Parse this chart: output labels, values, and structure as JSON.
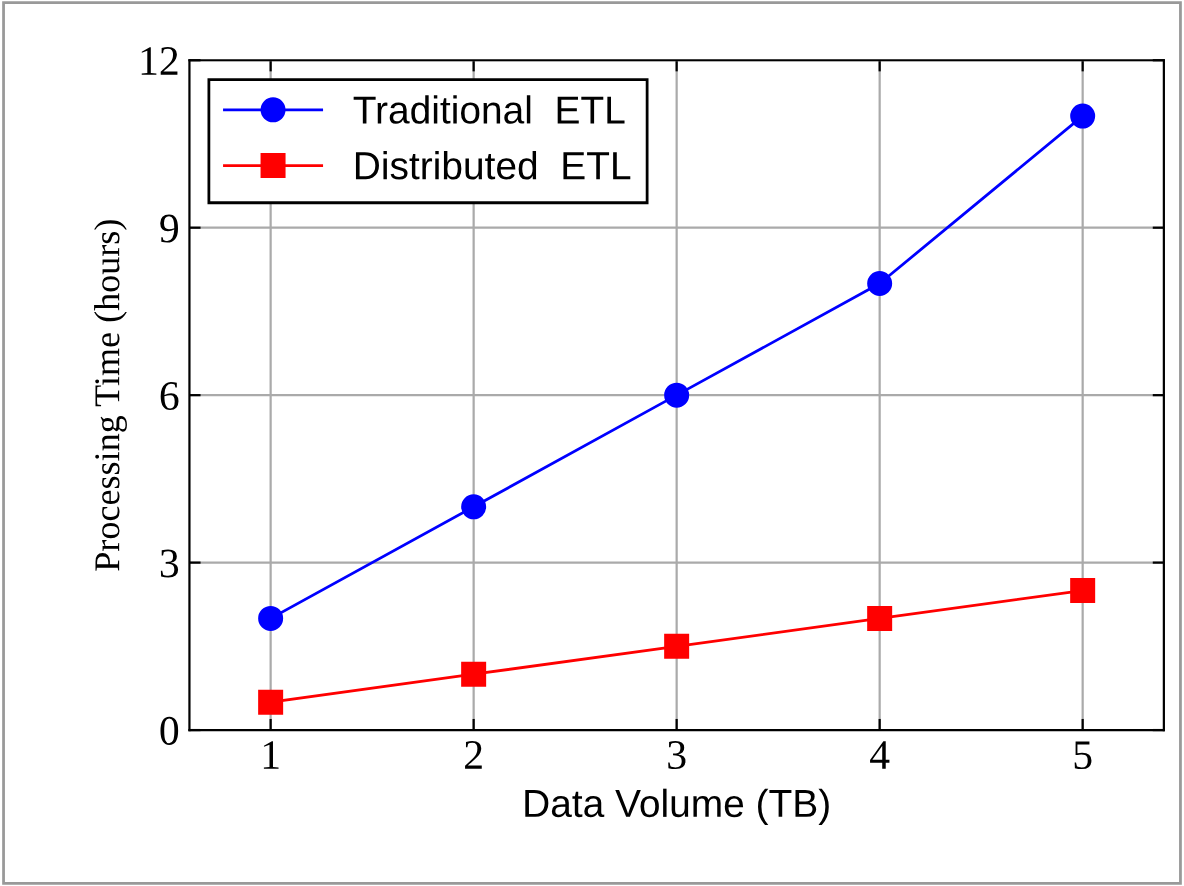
{
  "chart_data": {
    "type": "line",
    "xlabel": "Data Volume (TB)",
    "ylabel": "Processing Time (hours)",
    "x": [
      1,
      2,
      3,
      4,
      5
    ],
    "series": [
      {
        "name": "Traditional  ETL",
        "color": "#0000ff",
        "values": [
          2,
          4,
          6,
          8,
          11
        ],
        "marker": "circle"
      },
      {
        "name": "Distributed  ETL",
        "color": "#ff0000",
        "values": [
          0.5,
          1,
          1.5,
          2,
          2.5
        ],
        "marker": "square"
      }
    ],
    "xlim": [
      0.6,
      5.4
    ],
    "xticks": [
      1,
      2,
      3,
      4,
      5
    ],
    "ylim": [
      0,
      12
    ],
    "yticks": [
      0,
      3,
      6,
      9,
      12
    ],
    "grid": true,
    "legend": "top left",
    "line_style": "solid"
  }
}
